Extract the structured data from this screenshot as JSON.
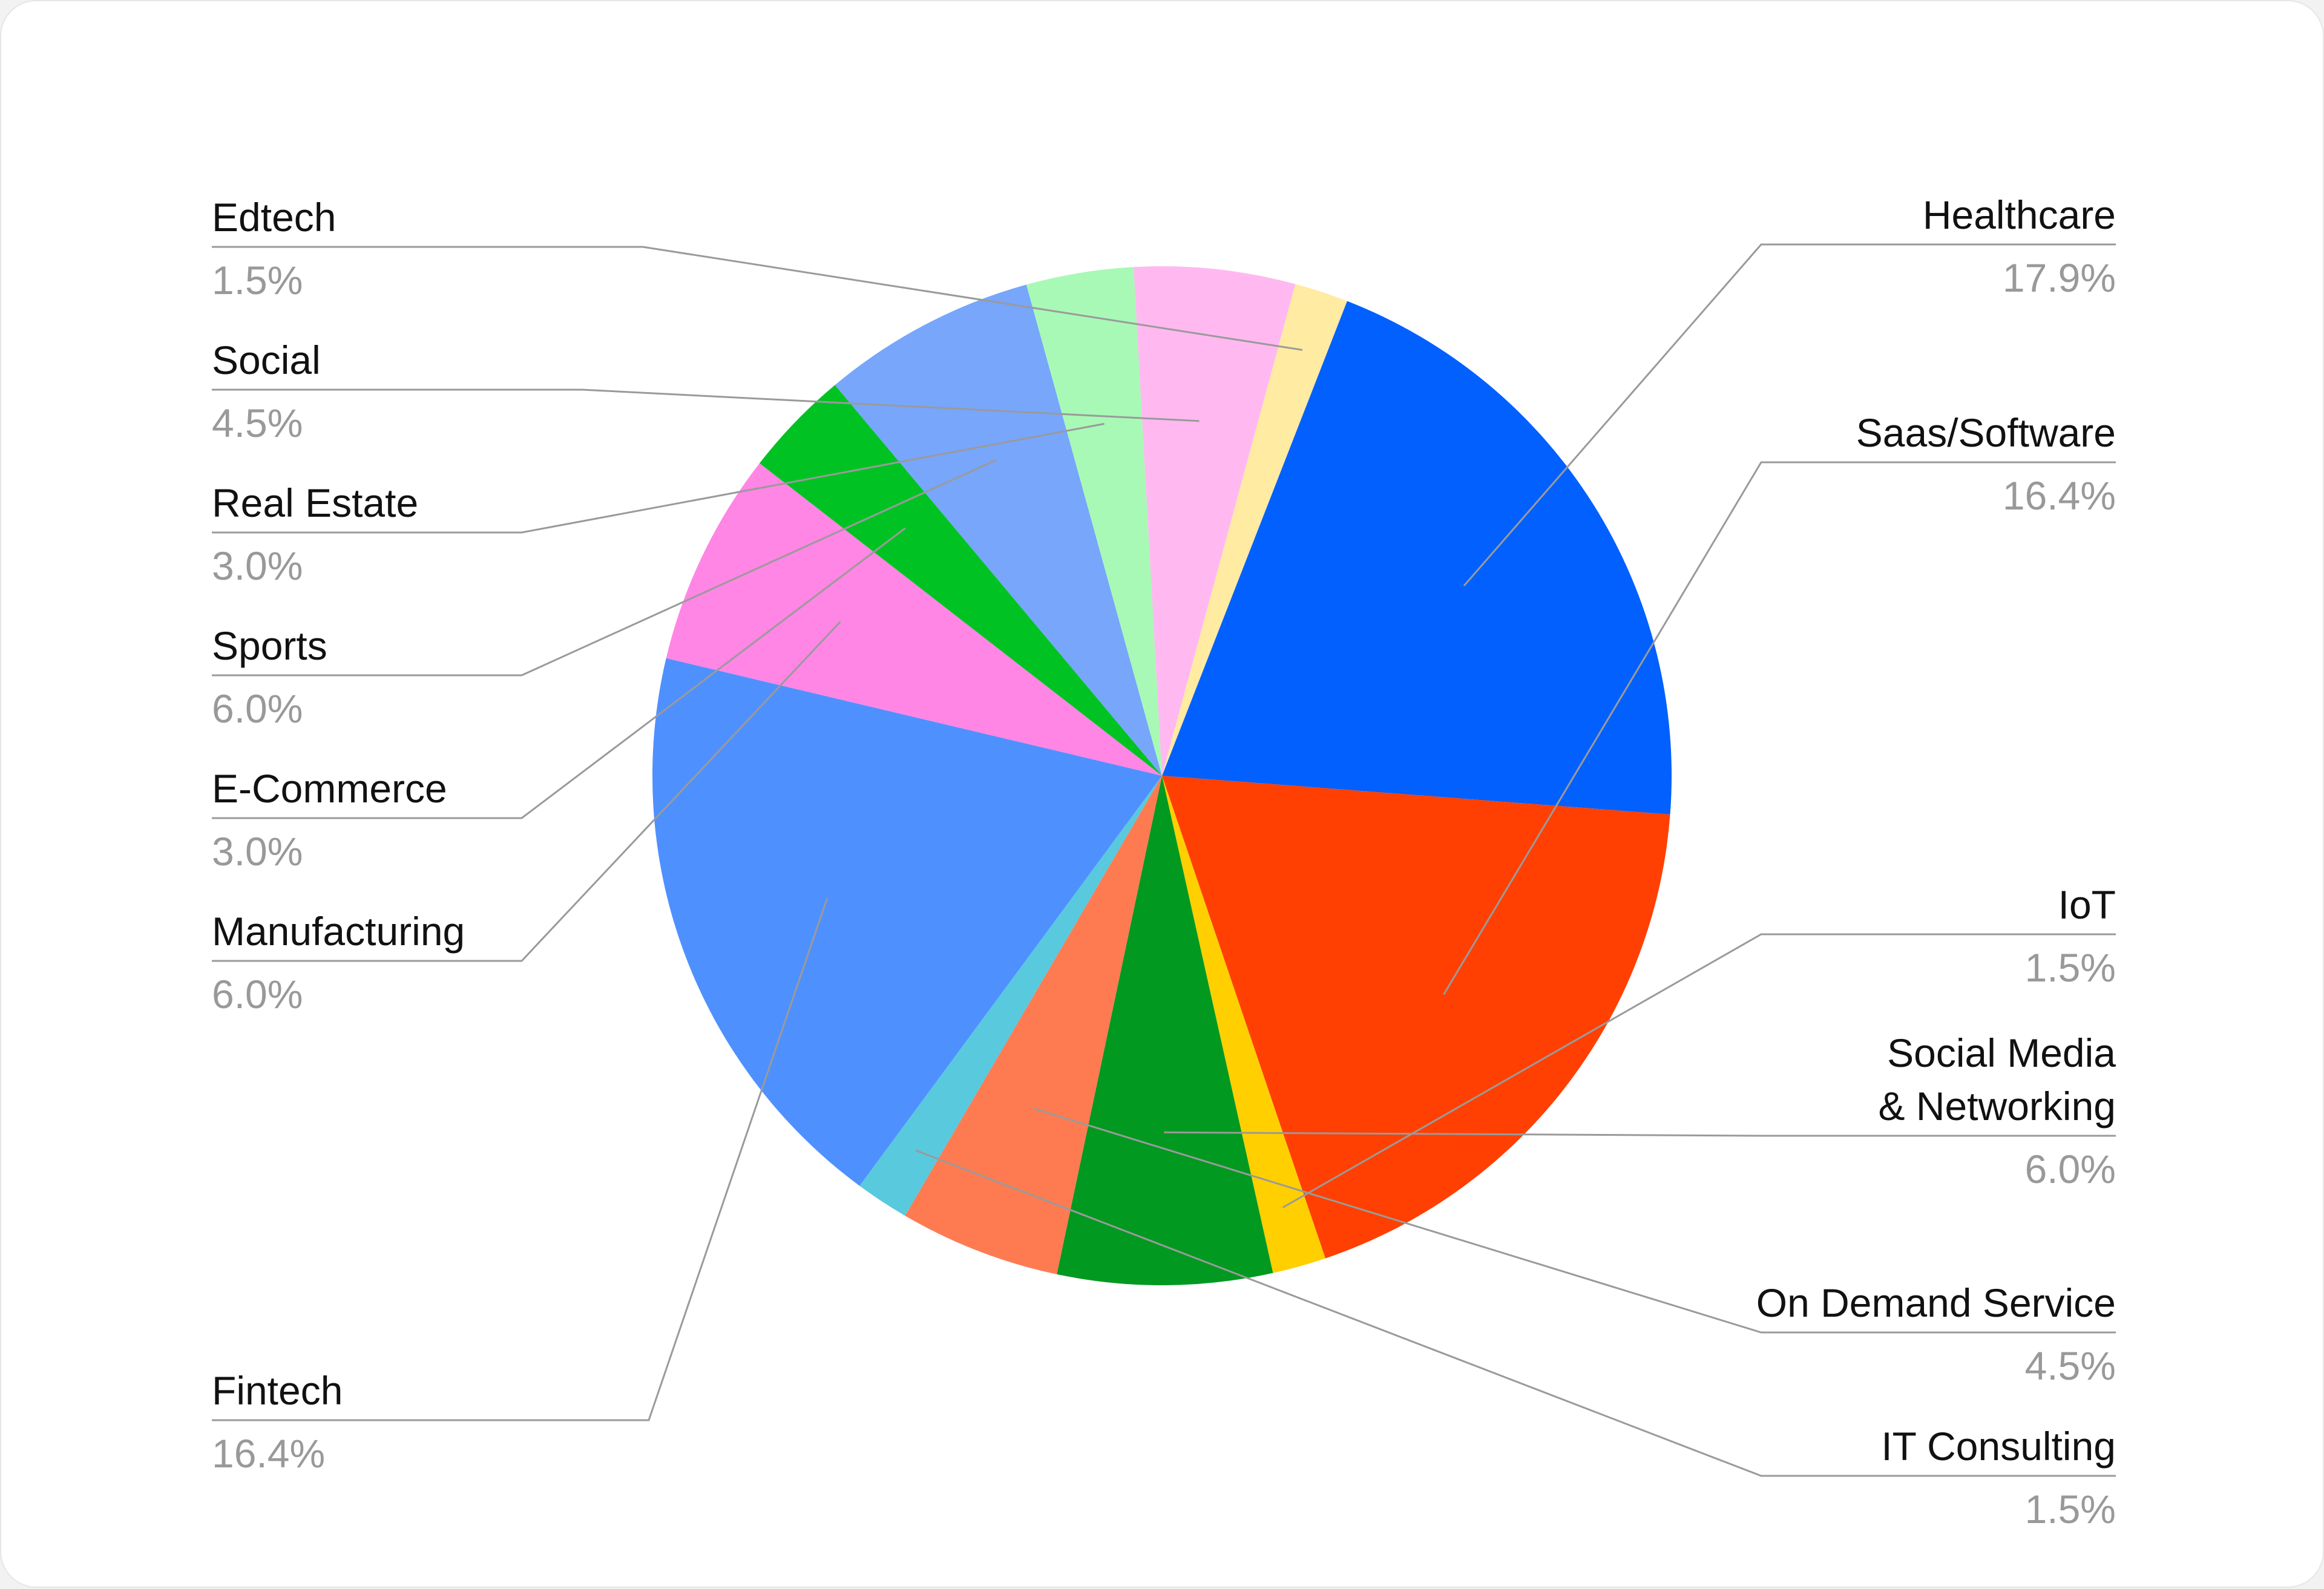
{
  "chart_data": {
    "type": "pie",
    "start_angle_deg": 21.3,
    "direction": "clockwise",
    "slices": [
      {
        "label": "Healthcare",
        "value": 17.9,
        "value_label": "17.9%",
        "color": "#0260FF",
        "side": "right"
      },
      {
        "label": "Saas/Software",
        "value": 16.4,
        "value_label": "16.4%",
        "color": "#FF4002",
        "side": "right"
      },
      {
        "label": "IoT",
        "value": 1.5,
        "value_label": "1.5%",
        "color": "#FFCF00",
        "side": "right"
      },
      {
        "label": "Social Media\n& Networking",
        "value": 6.0,
        "value_label": "6.0%",
        "color": "#029920",
        "side": "right"
      },
      {
        "label": "On Demand Service",
        "value": 4.5,
        "value_label": "4.5%",
        "color": "#FE7B52",
        "side": "right"
      },
      {
        "label": "IT Consulting",
        "value": 1.5,
        "value_label": "1.5%",
        "color": "#59C9DE",
        "side": "right"
      },
      {
        "label": "Fintech",
        "value": 16.4,
        "value_label": "16.4%",
        "color": "#4F90FF",
        "side": "left"
      },
      {
        "label": "Manufacturing",
        "value": 6.0,
        "value_label": "6.0%",
        "color": "#FF86E5",
        "side": "left"
      },
      {
        "label": "E-Commerce",
        "value": 3.0,
        "value_label": "3.0%",
        "color": "#00C323",
        "side": "left"
      },
      {
        "label": "Sports",
        "value": 6.0,
        "value_label": "6.0%",
        "color": "#77A6FB",
        "side": "left"
      },
      {
        "label": "Real Estate",
        "value": 3.0,
        "value_label": "3.0%",
        "color": "#A8F9B6",
        "side": "left"
      },
      {
        "label": "Social",
        "value": 4.5,
        "value_label": "4.5%",
        "color": "#FFB9F0",
        "side": "left"
      },
      {
        "label": "Edtech",
        "value": 1.5,
        "value_label": "1.5%",
        "color": "#FFEBA2",
        "side": "left"
      }
    ]
  }
}
